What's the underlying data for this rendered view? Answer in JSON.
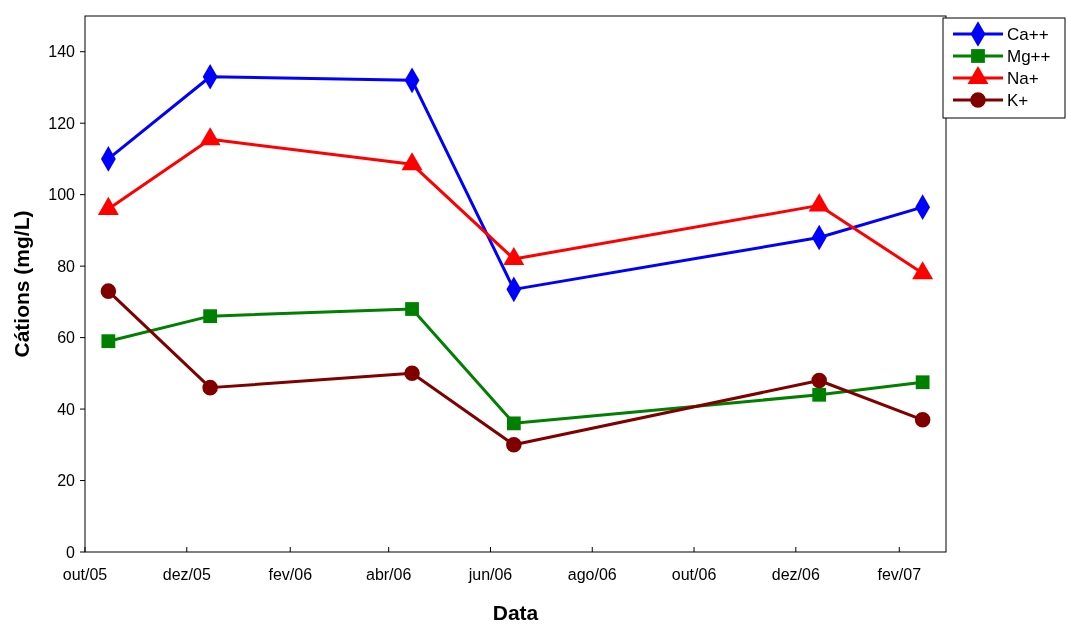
{
  "chart_data": {
    "type": "line",
    "xlabel": "Data",
    "ylabel": "Cátions (mg/L)",
    "x": [
      "2005-10-15",
      "2005-12-15",
      "2006-04-15",
      "2006-06-15",
      "2006-12-15",
      "2007-02-15"
    ],
    "series": [
      {
        "name": "Ca++",
        "color": "#0000ff",
        "marker": "diamond",
        "values": [
          110,
          133,
          132,
          73.5,
          88,
          96.5
        ]
      },
      {
        "name": "Mg++",
        "color": "#008000",
        "marker": "square",
        "values": [
          59,
          66,
          68,
          36,
          44,
          47.5
        ]
      },
      {
        "name": "Na+",
        "color": "#ff0000",
        "marker": "triangle",
        "values": [
          96,
          115.5,
          108.5,
          82,
          97,
          78
        ]
      },
      {
        "name": "K+",
        "color": "#800000",
        "marker": "circle",
        "values": [
          73,
          46,
          50,
          30,
          48,
          37
        ]
      }
    ],
    "xlim": [
      "2005-10-01",
      "2007-03-01"
    ],
    "xticks": [
      {
        "value": "2005-10-01",
        "label": "out/05"
      },
      {
        "value": "2005-12-01",
        "label": "dez/05"
      },
      {
        "value": "2006-02-01",
        "label": "fev/06"
      },
      {
        "value": "2006-04-01",
        "label": "abr/06"
      },
      {
        "value": "2006-06-01",
        "label": "jun/06"
      },
      {
        "value": "2006-08-01",
        "label": "ago/06"
      },
      {
        "value": "2006-10-01",
        "label": "out/06"
      },
      {
        "value": "2006-12-01",
        "label": "dez/06"
      },
      {
        "value": "2007-02-01",
        "label": "fev/07"
      }
    ],
    "ylim": [
      0,
      150
    ],
    "yticks": [
      0,
      20,
      40,
      60,
      80,
      100,
      120,
      140
    ],
    "grid": false,
    "legend": "top right",
    "line_style": "solid"
  }
}
